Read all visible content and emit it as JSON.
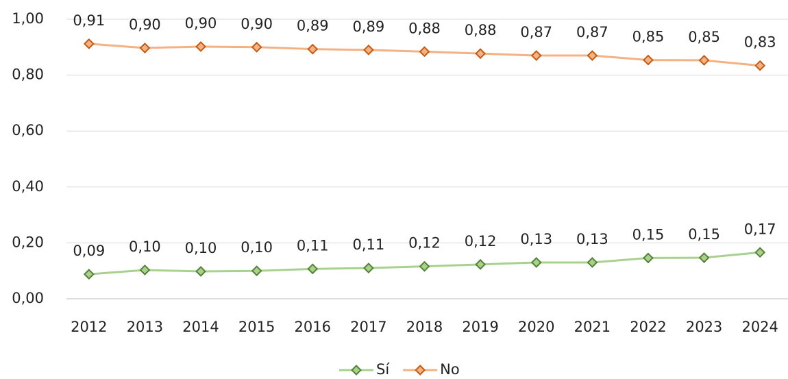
{
  "chart_data": {
    "type": "line",
    "categories": [
      "2012",
      "2013",
      "2014",
      "2015",
      "2016",
      "2017",
      "2018",
      "2019",
      "2020",
      "2021",
      "2022",
      "2023",
      "2024"
    ],
    "series": [
      {
        "name": "Sí",
        "color": "#a9d18e",
        "edge_color": "#548235",
        "values": [
          0.088,
          0.103,
          0.098,
          0.1,
          0.107,
          0.11,
          0.116,
          0.123,
          0.13,
          0.13,
          0.146,
          0.147,
          0.166
        ],
        "value_labels": [
          "0,09",
          "0,10",
          "0,10",
          "0,10",
          "0,11",
          "0,11",
          "0,12",
          "0,12",
          "0,13",
          "0,13",
          "0,15",
          "0,15",
          "0,17"
        ]
      },
      {
        "name": "No",
        "color": "#f4b183",
        "edge_color": "#c55a11",
        "values": [
          0.912,
          0.897,
          0.902,
          0.9,
          0.893,
          0.89,
          0.884,
          0.877,
          0.87,
          0.87,
          0.854,
          0.853,
          0.834
        ],
        "value_labels": [
          "0,91",
          "0,90",
          "0,90",
          "0,90",
          "0,89",
          "0,89",
          "0,88",
          "0,88",
          "0,87",
          "0,87",
          "0,85",
          "0,85",
          "0,83"
        ]
      }
    ],
    "ylim": [
      0,
      1
    ],
    "yticks": [
      {
        "value": 0,
        "label": "0,00"
      },
      {
        "value": 0.2,
        "label": "0,20"
      },
      {
        "value": 0.4,
        "label": "0,40"
      },
      {
        "value": 0.6,
        "label": "0,60"
      },
      {
        "value": 0.8,
        "label": "0,80"
      },
      {
        "value": 1,
        "label": "1,00"
      }
    ],
    "grid": true,
    "legend": "bottom"
  }
}
